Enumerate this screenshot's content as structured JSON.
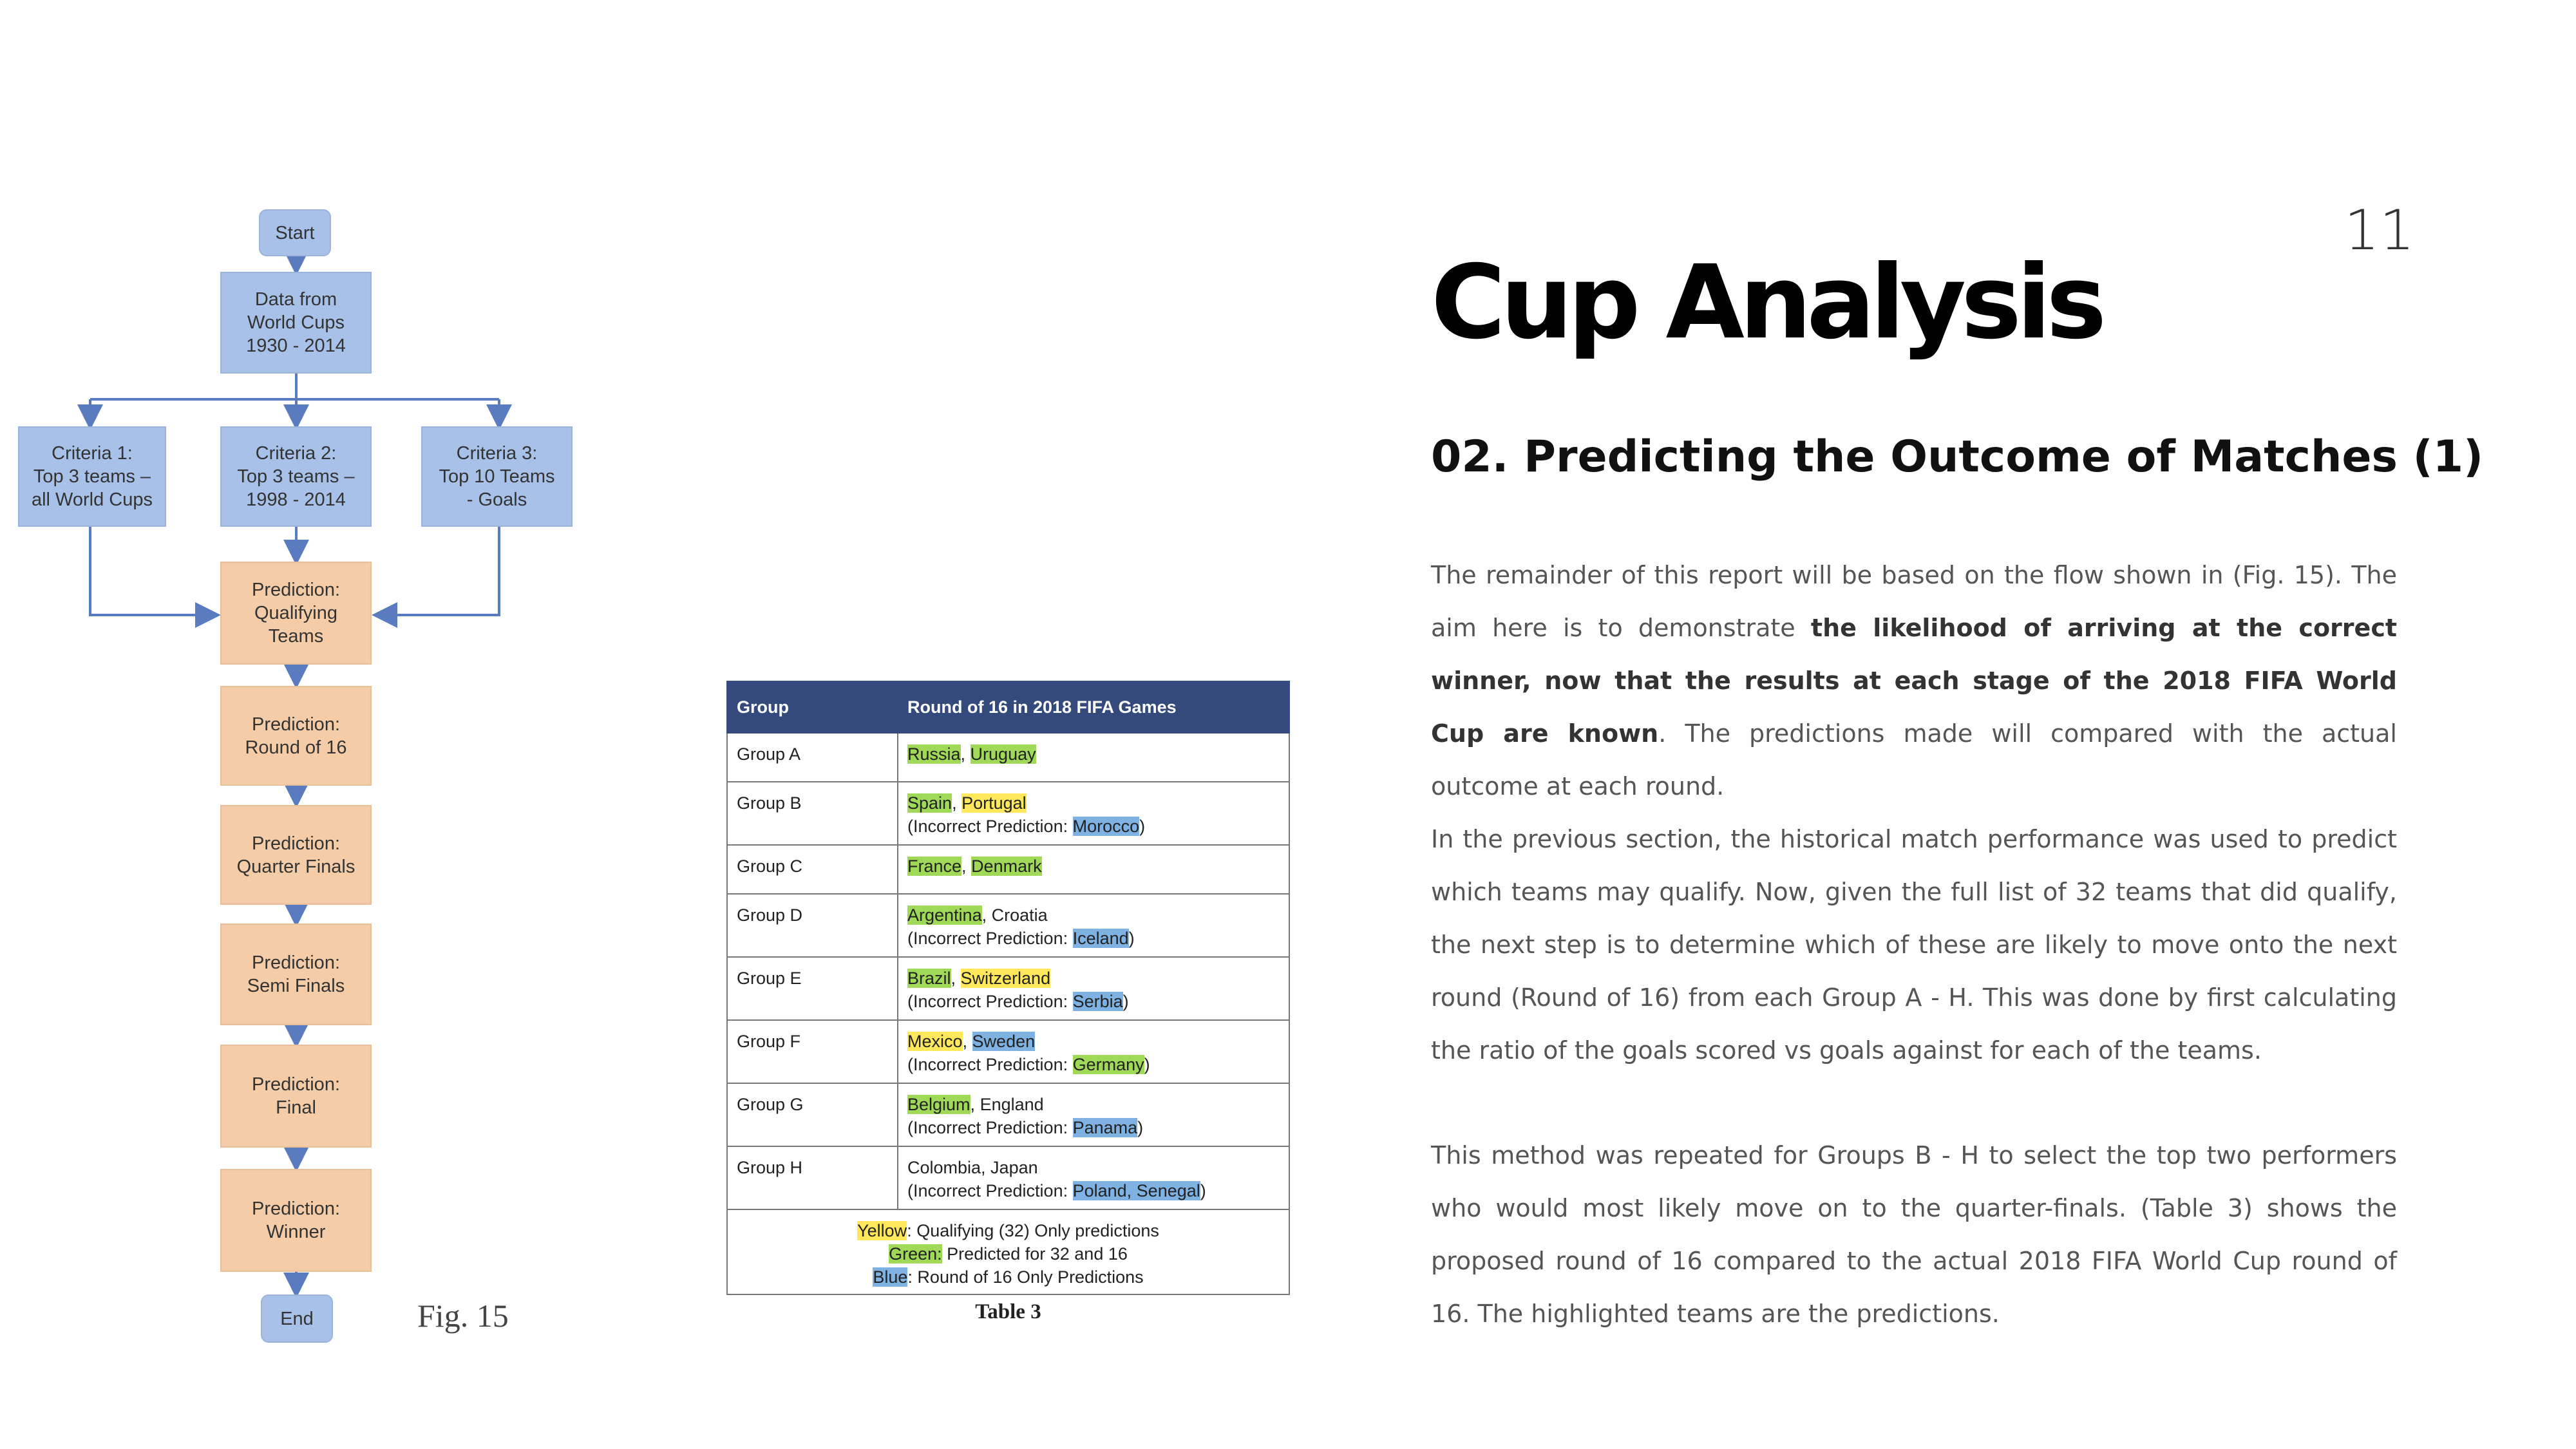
{
  "page": {
    "number": "11",
    "title": "Cup Analysis",
    "subtitle": "02. Predicting the Outcome of Matches (1)"
  },
  "flowchart": {
    "start": "Start",
    "data": "Data from\nWorld Cups\n1930  - 2014",
    "criteria1": "Criteria 1:\nTop 3 teams –\nall World Cups",
    "criteria2": "Criteria 2:\nTop 3 teams –\n1998 - 2014",
    "criteria3": "Criteria 3:\nTop 10 Teams\n- Goals",
    "qualifying": "Prediction:\nQualifying\nTeams",
    "round16": "Prediction:\nRound of 16",
    "quarter": "Prediction:\nQuarter Finals",
    "semi": "Prediction:\nSemi Finals",
    "final": "Prediction:\nFinal",
    "winner": "Prediction:\nWinner",
    "end": "End",
    "caption": "Fig. 15"
  },
  "table": {
    "headers": [
      "Group",
      "Round of 16 in 2018 FIFA Games"
    ],
    "rows": {
      "a": {
        "group": "Group A",
        "t1": "Russia",
        "t2": "Uruguay"
      },
      "b": {
        "group": "Group B",
        "t1": "Spain",
        "t2": "Portugal",
        "wrong": "Morocco"
      },
      "c": {
        "group": "Group C",
        "t1": "France",
        "t2": "Denmark"
      },
      "d": {
        "group": "Group D",
        "t1": "Argentina",
        "t2": "Croatia",
        "wrong": "Iceland"
      },
      "e": {
        "group": "Group E",
        "t1": "Brazil",
        "t2": "Switzerland",
        "wrong": "Serbia"
      },
      "f": {
        "group": "Group F",
        "t1": "Mexico",
        "t2": "Sweden",
        "wrong": "Germany"
      },
      "g": {
        "group": "Group G",
        "t1": "Belgium",
        "t2": "England",
        "wrong": "Panama"
      },
      "h": {
        "group": "Group H",
        "t1": "Colombia, Japan",
        "wrong": "Poland, Senegal"
      }
    },
    "incorrect_label": "(Incorrect Prediction: ",
    "legend": {
      "yellow": "Yellow",
      "yellow_text": ": Qualifying (32) Only predictions",
      "green": "Green:",
      "green_text": " Predicted for 32 and 16",
      "blue": "Blue",
      "blue_text": ": Round of 16 Only Predictions"
    },
    "caption": "Table 3"
  },
  "body": {
    "p1_a": "The remainder of this report will be based on the flow shown in (Fig. 15). The aim here is to demonstrate ",
    "p1_bold": "the likelihood of arriving at the correct winner, now that the results at each stage of the 2018 FIFA World Cup are known",
    "p1_b": ". The predictions made will compared with the actual outcome at each round.",
    "p2": "In the previous section, the historical match performance was used to predict which teams may qualify. Now, given the full list of 32 teams that did qualify, the next step is to determine which of these are likely to move onto the next round (Round of 16) from each Group A - H. This was done by first calculating the ratio of the goals scored vs goals against for each of the teams.",
    "p3": "This method was repeated for Groups B - H to select the top two performers who would most likely move on to the quarter-finals. (Table 3) shows the proposed round of 16 compared to the actual 2018 FIFA World Cup round of 16. The highlighted teams are the predictions."
  },
  "colors": {
    "flow_blue": "#a8c1e8",
    "flow_orange": "#f4cda8",
    "table_header": "#344a7c",
    "highlight_yellow": "#ffe85c",
    "highlight_green": "#9fd957",
    "highlight_blue": "#7fb2e3"
  }
}
